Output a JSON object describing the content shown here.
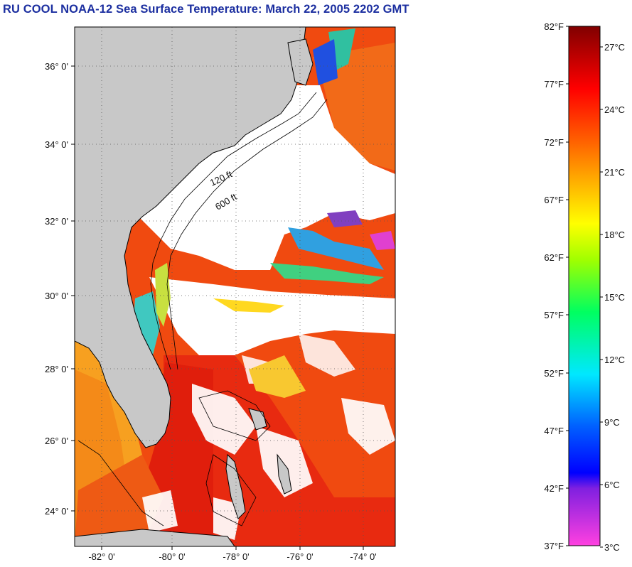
{
  "title": "RU COOL  NOAA-12  Sea Surface Temperature:  March 22, 2005 2202 GMT",
  "map": {
    "lat_labels": [
      "36° 0'",
      "34° 0'",
      "32° 0'",
      "30° 0'",
      "28° 0'",
      "26° 0'",
      "24° 0'"
    ],
    "lon_labels": [
      "-82° 0'",
      "-80° 0'",
      "-78° 0'",
      "-76° 0'",
      "-74° 0'"
    ],
    "isobath_labels": [
      "120 ft",
      "600 ft"
    ],
    "land_color": "#c8c8c8",
    "cloud_color": "#ffffff"
  },
  "colorbar": {
    "fahrenheit_labels": [
      "82°F",
      "77°F",
      "72°F",
      "67°F",
      "62°F",
      "57°F",
      "52°F",
      "47°F",
      "42°F",
      "37°F"
    ],
    "celsius_labels": [
      "27°C",
      "24°C",
      "21°C",
      "18°C",
      "15°C",
      "12°C",
      "9°C",
      "6°C",
      "3°C"
    ],
    "range_f": [
      37,
      82
    ],
    "colors": [
      "#ff40e0",
      "#0000ff",
      "#00ffff",
      "#00ff00",
      "#ffff00",
      "#ff8000",
      "#ff0000",
      "#800000"
    ]
  }
}
